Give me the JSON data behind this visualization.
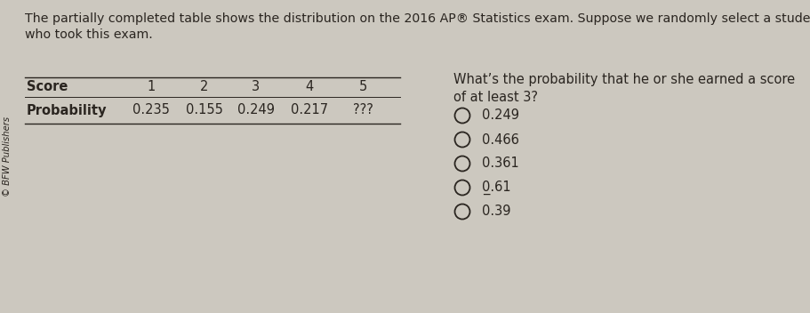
{
  "background_color": "#ccc8bf",
  "text_color": "#2a2520",
  "sidebar_text": "© BFW Publishers",
  "title_line1": "The partially completed table shows the distribution on the 2016 AP® Statistics exam. Suppose we randomly select a student",
  "title_line2": "who took this exam.",
  "title_fontsize": 10.2,
  "table_headers": [
    "1",
    "2",
    "3",
    "4",
    "5"
  ],
  "table_row_label": "Probability",
  "table_score_label": "Score",
  "table_values": [
    "0.235",
    "0.155",
    "0.249",
    "0.217",
    "???"
  ],
  "question_line1": "What’s the probability that he or she earned a score",
  "question_line2": "of at least 3?",
  "choices": [
    "0.249",
    "0.466",
    "0.361",
    "0.61",
    "0.39"
  ],
  "choice_special": [
    false,
    false,
    false,
    true,
    false
  ],
  "table_fontsize": 10.5,
  "question_fontsize": 10.5,
  "choices_fontsize": 10.5
}
